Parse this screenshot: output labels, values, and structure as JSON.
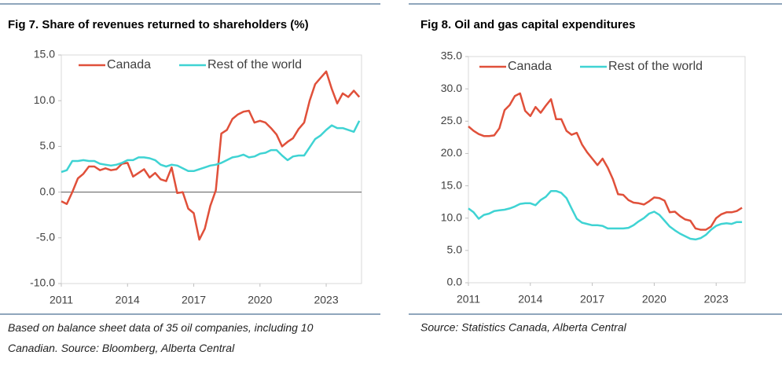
{
  "chart_data": [
    {
      "type": "line",
      "title": "Fig 7. Share of revenues returned to shareholders (%)",
      "caption": "Based on balance sheet data of 35  oil companies, including 10 Canadian. Source: Bloomberg, Alberta Central",
      "x": [
        2011,
        2011.25,
        2011.5,
        2011.75,
        2012,
        2012.25,
        2012.5,
        2012.75,
        2013,
        2013.25,
        2013.5,
        2013.75,
        2014,
        2014.25,
        2014.5,
        2014.75,
        2015,
        2015.25,
        2015.5,
        2015.75,
        2016,
        2016.25,
        2016.5,
        2016.75,
        2017,
        2017.25,
        2017.5,
        2017.75,
        2018,
        2018.25,
        2018.5,
        2018.75,
        2019,
        2019.25,
        2019.5,
        2019.75,
        2020,
        2020.25,
        2020.5,
        2020.75,
        2021,
        2021.25,
        2021.5,
        2021.75,
        2022,
        2022.25,
        2022.5,
        2022.75,
        2023,
        2023.25,
        2023.5,
        2023.75,
        2024,
        2024.25,
        2024.5
      ],
      "series": [
        {
          "name": "Canada",
          "color": "#e0503a",
          "values": [
            -1.0,
            -1.3,
            0.0,
            1.5,
            2.0,
            2.8,
            2.8,
            2.4,
            2.6,
            2.4,
            2.5,
            3.1,
            3.2,
            1.7,
            2.1,
            2.5,
            1.6,
            2.1,
            1.4,
            1.2,
            2.7,
            -0.1,
            0.0,
            -1.8,
            -2.3,
            -5.2,
            -4.0,
            -1.5,
            0.2,
            6.4,
            6.8,
            8.0,
            8.5,
            8.8,
            8.9,
            7.6,
            7.8,
            7.6,
            7.0,
            6.3,
            5.0,
            5.5,
            5.9,
            6.9,
            7.6,
            10.0,
            11.8,
            12.5,
            13.2,
            11.3,
            9.7,
            10.8,
            10.4,
            11.1,
            10.4
          ]
        },
        {
          "name": "Rest of the world",
          "color": "#3fd3d3",
          "values": [
            2.2,
            2.4,
            3.4,
            3.4,
            3.5,
            3.4,
            3.4,
            3.1,
            3.0,
            2.9,
            3.0,
            3.2,
            3.5,
            3.5,
            3.8,
            3.8,
            3.7,
            3.5,
            3.0,
            2.8,
            3.0,
            2.9,
            2.6,
            2.3,
            2.3,
            2.5,
            2.7,
            2.9,
            3.0,
            3.2,
            3.5,
            3.8,
            3.9,
            4.1,
            3.8,
            3.9,
            4.2,
            4.3,
            4.6,
            4.6,
            4.0,
            3.5,
            3.9,
            4.0,
            4.0,
            4.9,
            5.8,
            6.2,
            6.8,
            7.3,
            7.0,
            7.0,
            6.8,
            6.6,
            7.8
          ]
        }
      ],
      "xlim": [
        2011,
        2024.6
      ],
      "xticks": [
        2011,
        2014,
        2017,
        2020,
        2023
      ],
      "ylim": [
        -10,
        15
      ],
      "yticks": [
        {
          "value": -10,
          "label": "-10.0"
        },
        {
          "value": -5,
          "label": "-5.0"
        },
        {
          "value": 0,
          "label": "0.0"
        },
        {
          "value": 5,
          "label": "5.0"
        },
        {
          "value": 10,
          "label": "10.0"
        },
        {
          "value": 15,
          "label": "15.0"
        }
      ],
      "grid": true
    },
    {
      "type": "line",
      "title": "Fig 8. Oil and gas capital expenditures",
      "caption": "Source: Statistics Canada, Alberta Central",
      "x": [
        2011,
        2011.25,
        2011.5,
        2011.75,
        2012,
        2012.25,
        2012.5,
        2012.75,
        2013,
        2013.25,
        2013.5,
        2013.75,
        2014,
        2014.25,
        2014.5,
        2014.75,
        2015,
        2015.25,
        2015.5,
        2015.75,
        2016,
        2016.25,
        2016.5,
        2016.75,
        2017,
        2017.25,
        2017.5,
        2017.75,
        2018,
        2018.25,
        2018.5,
        2018.75,
        2019,
        2019.25,
        2019.5,
        2019.75,
        2020,
        2020.25,
        2020.5,
        2020.75,
        2021,
        2021.25,
        2021.5,
        2021.75,
        2022,
        2022.25,
        2022.5,
        2022.75,
        2023,
        2023.25,
        2023.5,
        2023.75,
        2024,
        2024.25
      ],
      "series": [
        {
          "name": "Canada",
          "color": "#e0503a",
          "values": [
            24.2,
            23.5,
            23.0,
            22.7,
            22.7,
            22.8,
            23.9,
            26.7,
            27.5,
            28.9,
            29.3,
            26.6,
            25.8,
            27.2,
            26.3,
            27.4,
            28.4,
            25.3,
            25.3,
            23.5,
            22.9,
            23.2,
            21.4,
            20.2,
            19.2,
            18.2,
            19.2,
            17.8,
            16.0,
            13.7,
            13.6,
            12.8,
            12.4,
            12.3,
            12.1,
            12.6,
            13.2,
            13.1,
            12.7,
            10.9,
            11.0,
            10.3,
            9.8,
            9.6,
            8.4,
            8.2,
            8.2,
            8.7,
            10.0,
            10.6,
            10.9,
            10.9,
            11.1,
            11.6
          ]
        },
        {
          "name": "Rest of the world",
          "color": "#3fd3d3",
          "values": [
            11.5,
            10.9,
            9.9,
            10.5,
            10.7,
            11.1,
            11.2,
            11.3,
            11.5,
            11.8,
            12.2,
            12.3,
            12.3,
            12.0,
            12.8,
            13.3,
            14.2,
            14.2,
            13.9,
            13.1,
            11.5,
            9.9,
            9.3,
            9.1,
            8.9,
            8.9,
            8.8,
            8.4,
            8.4,
            8.4,
            8.4,
            8.5,
            8.9,
            9.5,
            10.0,
            10.7,
            11.0,
            10.5,
            9.6,
            8.7,
            8.1,
            7.6,
            7.2,
            6.8,
            6.7,
            6.9,
            7.4,
            8.2,
            8.8,
            9.1,
            9.2,
            9.1,
            9.4,
            9.4
          ]
        }
      ],
      "xlim": [
        2011,
        2024.4
      ],
      "xticks": [
        2011,
        2014,
        2017,
        2020,
        2023
      ],
      "ylim": [
        0,
        35
      ],
      "yticks": [
        {
          "value": 0,
          "label": "0.0"
        },
        {
          "value": 5,
          "label": "5.0"
        },
        {
          "value": 10,
          "label": "10.0"
        },
        {
          "value": 15,
          "label": "15.0"
        },
        {
          "value": 20,
          "label": "20.0"
        },
        {
          "value": 25,
          "label": "25.0"
        },
        {
          "value": 30,
          "label": "30.0"
        },
        {
          "value": 35,
          "label": "35.0"
        }
      ],
      "grid": false
    }
  ]
}
